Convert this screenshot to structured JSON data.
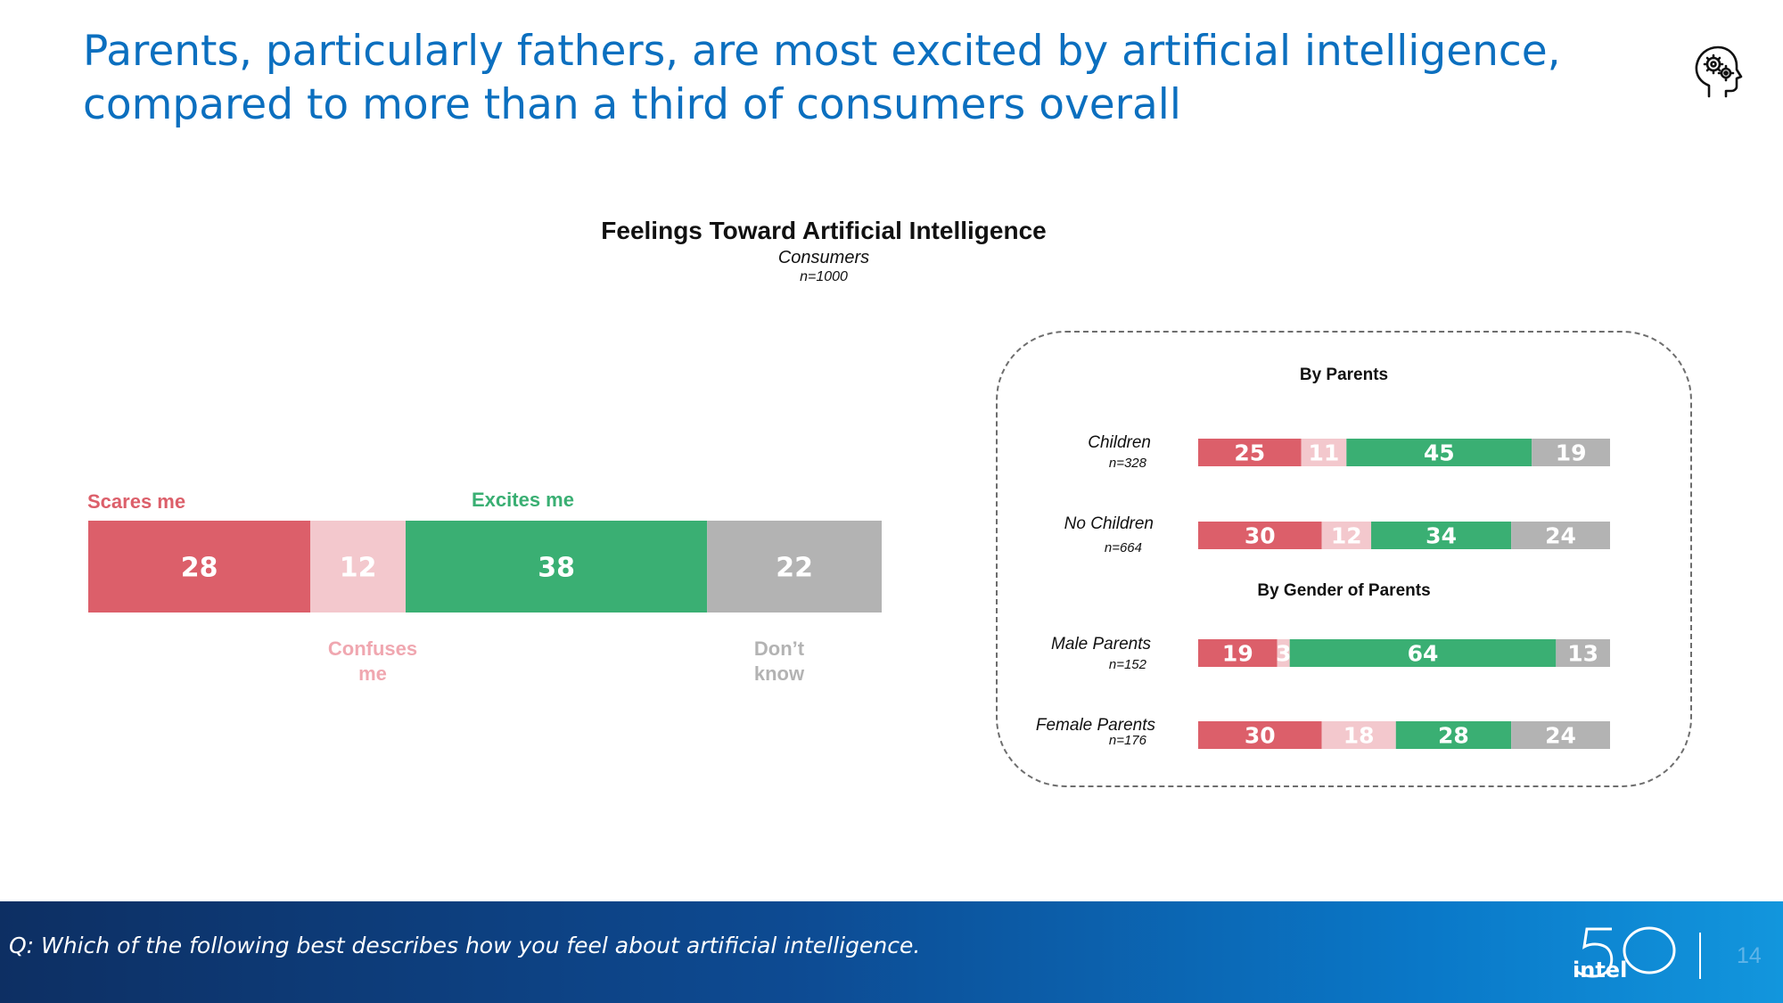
{
  "slide": {
    "title_line1": "Parents, particularly fathers, are most excited by artificial intelligence,",
    "title_line2": "compared to more than a third of consumers overall",
    "icon": "ai-head-gear-icon",
    "question": "Q: Which of the following best describes how you feel about artificial intelligence.",
    "page_number": "14",
    "logo_text": "intel",
    "logo_mark": "50"
  },
  "colors": {
    "scares": "#dc5f6a",
    "confuses": "#f3c8cd",
    "excites": "#3aaf73",
    "dont_know": "#b3b3b3",
    "title_blue": "#0b6fbf"
  },
  "chart_data": [
    {
      "type": "bar",
      "orientation": "horizontal-stacked-100",
      "title": "Feelings Toward Artificial Intelligence",
      "subtitle": "Consumers",
      "n": "n=1000",
      "categories": [
        "Consumers"
      ],
      "series": [
        {
          "name": "Scares me",
          "label": "Scares me",
          "values": [
            28
          ]
        },
        {
          "name": "Confuses me",
          "label": "Confuses\nme",
          "values": [
            12
          ]
        },
        {
          "name": "Excites me",
          "label": "Excites me",
          "values": [
            38
          ]
        },
        {
          "name": "Don't know",
          "label": "Don’t\nknow",
          "values": [
            22
          ]
        }
      ],
      "series_labels": {
        "scares": "Scares me",
        "excites": "Excites me",
        "confuses_line1": "Confuses",
        "confuses_line2": "me",
        "dont_know_line1": "Don’t",
        "dont_know_line2": "know"
      }
    },
    {
      "type": "bar",
      "orientation": "horizontal-stacked-100",
      "title": "By Parents",
      "categories": [
        "Children",
        "No Children"
      ],
      "n": [
        "n=328",
        "n=664"
      ],
      "series": [
        {
          "name": "Scares me",
          "values": [
            25,
            30
          ]
        },
        {
          "name": "Confuses me",
          "values": [
            11,
            12
          ]
        },
        {
          "name": "Excites me",
          "values": [
            45,
            34
          ]
        },
        {
          "name": "Don't know",
          "values": [
            19,
            24
          ]
        }
      ]
    },
    {
      "type": "bar",
      "orientation": "horizontal-stacked-100",
      "title": "By Gender of Parents",
      "categories": [
        "Male Parents",
        "Female Parents"
      ],
      "n": [
        "n=152",
        "n=176"
      ],
      "series": [
        {
          "name": "Scares me",
          "values": [
            19,
            30
          ]
        },
        {
          "name": "Confuses me",
          "values": [
            3,
            18
          ]
        },
        {
          "name": "Excites me",
          "values": [
            64,
            28
          ]
        },
        {
          "name": "Don't know",
          "values": [
            13,
            24
          ]
        }
      ]
    }
  ]
}
